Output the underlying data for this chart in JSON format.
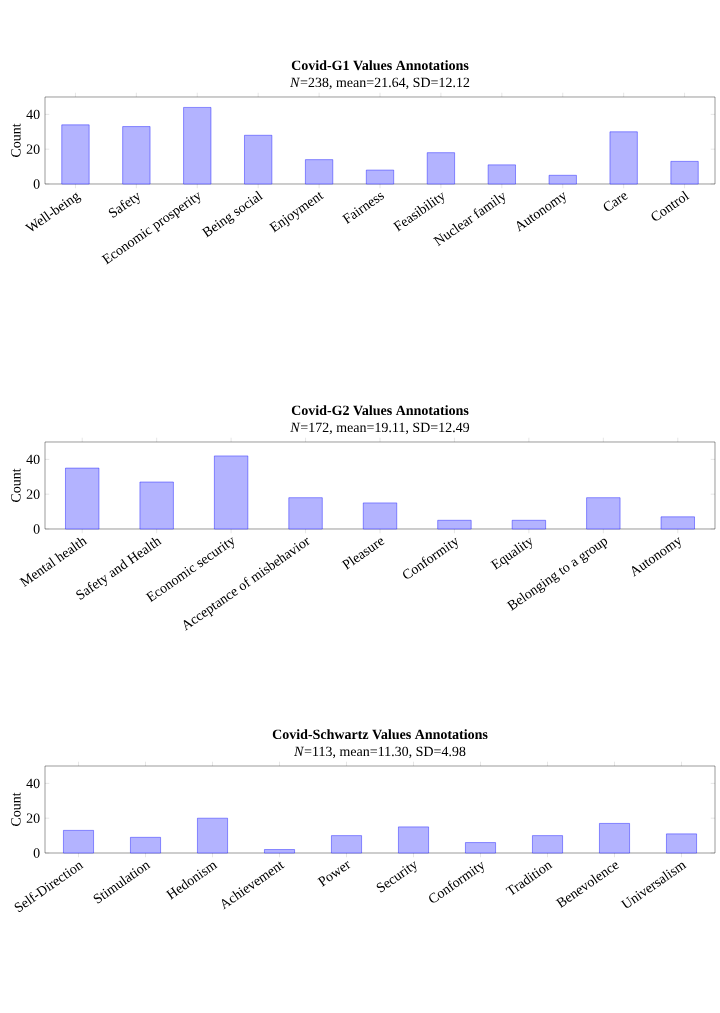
{
  "chart_data": [
    {
      "type": "bar",
      "title": "Covid-G1 Values Annotations",
      "subtitle": "*N*=238, mean=21.64, SD=12.12",
      "ylabel": "Count",
      "categories": [
        "Well-being",
        "Safety",
        "Economic prosperity",
        "Being social",
        "Enjoyment",
        "Fairness",
        "Feasibility",
        "Nuclear family",
        "Autonomy",
        "Care",
        "Control"
      ],
      "values": [
        34,
        33,
        44,
        28,
        14,
        8,
        18,
        11,
        5,
        30,
        13
      ],
      "color": "#b3b3ff",
      "ylim": [
        0,
        50
      ],
      "yticks": [
        0,
        20,
        40
      ]
    },
    {
      "type": "bar",
      "title": "Covid-G2 Values Annotations",
      "subtitle": "*N*=172, mean=19.11, SD=12.49",
      "ylabel": "Count",
      "categories": [
        "Mental health",
        "Safety and Health",
        "Economic security",
        "Acceptance of misbehavior",
        "Pleasure",
        "Conformity",
        "Equality",
        "Belonging to a group",
        "Autonomy"
      ],
      "values": [
        35,
        27,
        42,
        18,
        15,
        5,
        5,
        18,
        7
      ],
      "color": "#b3b3ff",
      "ylim": [
        0,
        50
      ],
      "yticks": [
        0,
        20,
        40
      ]
    },
    {
      "type": "bar",
      "title": "Covid-Schwartz Values Annotations",
      "subtitle": "*N*=113, mean=11.30, SD=4.98",
      "ylabel": "Count",
      "categories": [
        "Self-Direction",
        "Stimulation",
        "Hedonism",
        "Achievement",
        "Power",
        "Security",
        "Conformity",
        "Tradition",
        "Benevolence",
        "Universalism"
      ],
      "values": [
        13,
        9,
        20,
        2,
        10,
        15,
        6,
        10,
        17,
        11
      ],
      "color": "#b3b3ff",
      "ylim": [
        0,
        50
      ],
      "yticks": [
        0,
        20,
        40
      ]
    }
  ]
}
